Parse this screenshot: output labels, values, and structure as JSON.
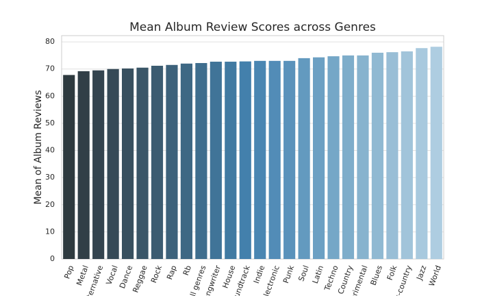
{
  "chart_data": {
    "type": "bar",
    "title": "Mean Album Review Scores across Genres",
    "y_label": "Mean of Album Reviews",
    "categories": [
      "Pop",
      "Metal",
      "lternative",
      "Vocal",
      "Dance",
      "Reggae",
      "Rock",
      "Rap",
      "Rb",
      "ll genres",
      "ongwriter",
      "House",
      "oundtrack",
      "Indie",
      "lectronic",
      "Punk",
      "Soul",
      "Latin",
      "Techno",
      "Country",
      "erimental",
      "Blues",
      "Folk",
      "lt-country",
      "Jazz",
      "World"
    ],
    "values": [
      67.8,
      69.2,
      69.5,
      70,
      70.2,
      70.5,
      71.2,
      71.5,
      72,
      72.2,
      72.7,
      72.7,
      72.8,
      73,
      73,
      73,
      74,
      74.3,
      74.7,
      75,
      75,
      76,
      76.2,
      76.5,
      77.7,
      78.2
    ],
    "colors": [
      "#2e3a3f",
      "#313f47",
      "#34444f",
      "#364a57",
      "#38505f",
      "#3a5668",
      "#3c5c71",
      "#3d627b",
      "#3e6884",
      "#3f6e8e",
      "#407498",
      "#417aa2",
      "#4380ac",
      "#4a86b2",
      "#528cb7",
      "#5a92bb",
      "#639abf",
      "#6ca0c3",
      "#75a7c7",
      "#7eadca",
      "#87b3ce",
      "#90b9d2",
      "#99bed6",
      "#a1c4da",
      "#a8c9de",
      "#aecde1"
    ],
    "ylim": [
      0,
      82.3
    ],
    "yticks": [
      0,
      10,
      20,
      30,
      40,
      50,
      60,
      70,
      80
    ],
    "grid": true
  }
}
